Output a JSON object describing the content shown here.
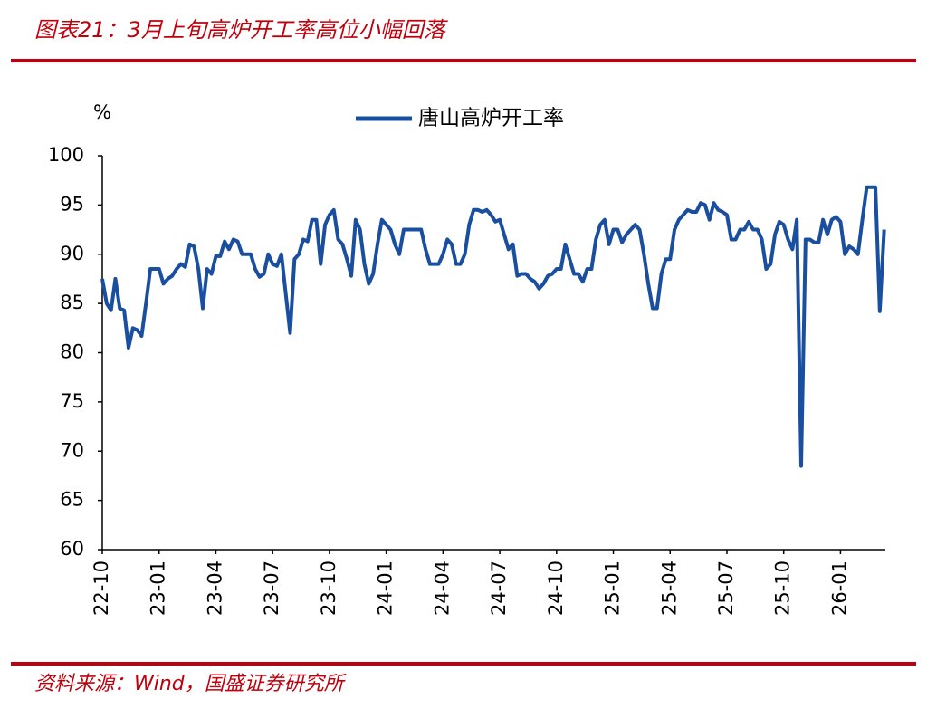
{
  "chart_data": {
    "type": "line",
    "title": "图表21：3月上旬高炉开工率高位小幅回落",
    "y_unit": "%",
    "source": "资料来源：Wind，国盛证券研究所",
    "categories": [
      "22-10",
      null,
      null,
      null,
      null,
      null,
      null,
      null,
      null,
      null,
      null,
      null,
      null,
      "23-01",
      null,
      null,
      null,
      null,
      null,
      null,
      null,
      null,
      null,
      null,
      null,
      null,
      "23-04",
      null,
      null,
      null,
      null,
      null,
      null,
      null,
      null,
      null,
      null,
      null,
      null,
      "23-07",
      null,
      null,
      null,
      null,
      null,
      null,
      null,
      null,
      null,
      null,
      null,
      null,
      "23-10",
      null,
      null,
      null,
      null,
      null,
      null,
      null,
      null,
      null,
      null,
      null,
      null,
      "24-01",
      null,
      null,
      null,
      null,
      null,
      null,
      null,
      null,
      null,
      null,
      null,
      null,
      "24-04",
      null,
      null,
      null,
      null,
      null,
      null,
      null,
      null,
      null,
      null,
      null,
      null,
      "24-07",
      null,
      null,
      null,
      null,
      null,
      null,
      null,
      null,
      null,
      null,
      null,
      null,
      "24-10",
      null,
      null,
      null,
      null,
      null,
      null,
      null,
      null,
      null,
      null,
      null,
      null,
      "25-01",
      null,
      null,
      null,
      null,
      null,
      null,
      null,
      null,
      null,
      null,
      null,
      null,
      "25-04",
      null,
      null,
      null,
      null,
      null,
      null,
      null,
      null,
      null,
      null,
      null,
      null,
      "25-07",
      null,
      null,
      null,
      null,
      null,
      null,
      null,
      null,
      null,
      null,
      null,
      null,
      "25-10",
      null,
      null,
      null,
      null,
      null,
      null,
      null,
      null,
      null,
      null,
      null,
      null,
      "26-01",
      null,
      null,
      null,
      null,
      null,
      null,
      null,
      null,
      null,
      null
    ],
    "series": [
      {
        "name": "唐山高炉开工率",
        "color": "#1a4fa0",
        "values": [
          87.5,
          85,
          84.3,
          87.5,
          84.5,
          84.3,
          80.5,
          82.5,
          82.3,
          81.7,
          85,
          88.5,
          88.5,
          88.5,
          87,
          87.5,
          87.8,
          88.5,
          89,
          88.7,
          91,
          90.8,
          88.5,
          84.5,
          88.5,
          88,
          89.8,
          89.8,
          91.3,
          90.5,
          91.5,
          91.3,
          90,
          90,
          90,
          88.5,
          87.7,
          88,
          90,
          89,
          88.8,
          90,
          86,
          82,
          89.5,
          90,
          91.5,
          91.3,
          93.5,
          93.5,
          89,
          93,
          94,
          94.5,
          91.5,
          91,
          89.5,
          87.8,
          93.5,
          92.5,
          89,
          87,
          88,
          91,
          93.5,
          93,
          92.5,
          91,
          90,
          92.5,
          92.5,
          92.5,
          92.5,
          92.5,
          90.5,
          89,
          89,
          89,
          90,
          91.5,
          91,
          89,
          89,
          90,
          93,
          94.5,
          94.5,
          94.3,
          94.5,
          94,
          93.3,
          93.5,
          92,
          90.5,
          91,
          87.8,
          88,
          88,
          87.5,
          87.2,
          86.5,
          87,
          87.8,
          88,
          88.5,
          88.5,
          91,
          89.5,
          88,
          88,
          87.2,
          88.5,
          88.5,
          91.5,
          93,
          93.5,
          91,
          92.5,
          92.5,
          91.2,
          92,
          92.5,
          93,
          92.5,
          90,
          87,
          84.5,
          84.5,
          88,
          89.5,
          89.5,
          92.5,
          93.5,
          94,
          94.5,
          94.3,
          94.3,
          95.2,
          95,
          93.5,
          95.2,
          94.5,
          94.3,
          94,
          91.5,
          91.5,
          92.5,
          92.5,
          93.3,
          92.5,
          92.5,
          91.5,
          88.5,
          89,
          92,
          93.3,
          93,
          91.5,
          90.5,
          93.5,
          68.5,
          91.5,
          91.5,
          91.2,
          91.2,
          93.5,
          92,
          93.5,
          93.8,
          93.3,
          90,
          90.8,
          90.5,
          90,
          93.5,
          96.8,
          96.8,
          96.8,
          84.2,
          92.5
        ]
      }
    ],
    "ylim": [
      60,
      100
    ],
    "yticks": [
      60,
      65,
      70,
      75,
      80,
      85,
      90,
      95,
      100
    ],
    "grid": false
  }
}
